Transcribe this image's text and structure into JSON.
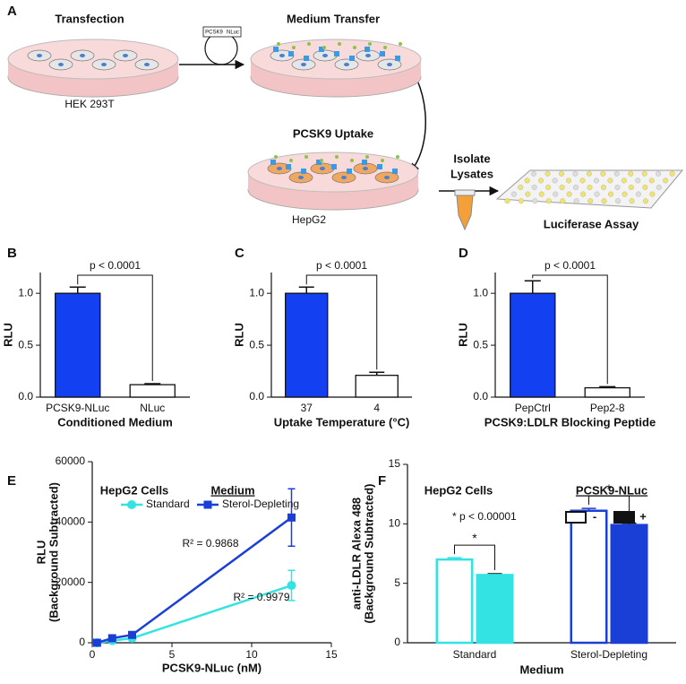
{
  "diagram": {
    "label": "A",
    "transfection": "Transfection",
    "cell_line_1": "HEK 293T",
    "plasmid": [
      "PCSK9",
      "NLuc"
    ],
    "medium_transfer": "Medium Transfer",
    "uptake": "PCSK9 Uptake",
    "cell_line_2": "HepG2",
    "isolate": [
      "Isolate",
      "Lysates"
    ],
    "assay": "Luciferase Assay"
  },
  "chart_data": [
    {
      "type": "bar",
      "panel": "B",
      "categories": [
        "PCSK9-NLuc",
        "NLuc"
      ],
      "values": [
        1.0,
        0.12
      ],
      "errors": [
        0.06,
        0.01
      ],
      "colors": [
        "#1340f0",
        "#ffffff"
      ],
      "ylabel": "RLU",
      "xlabel": "Conditioned Medium",
      "annotation": "p < 0.0001",
      "ylim": [
        0,
        1.2
      ],
      "yticks": [
        {
          "value": 0,
          "label": "0.0"
        },
        0.5,
        {
          "value": 1,
          "label": "1.0"
        }
      ]
    },
    {
      "type": "bar",
      "panel": "C",
      "categories": [
        "37",
        "4"
      ],
      "values": [
        1.0,
        0.21
      ],
      "errors": [
        0.06,
        0.03
      ],
      "colors": [
        "#1340f0",
        "#ffffff"
      ],
      "ylabel": "RLU",
      "xlabel": "Uptake Temperature (°C)",
      "annotation": "p < 0.0001",
      "ylim": [
        0,
        1.2
      ],
      "yticks": [
        {
          "value": 0,
          "label": "0.0"
        },
        0.5,
        {
          "value": 1,
          "label": "1.0"
        }
      ]
    },
    {
      "type": "bar",
      "panel": "D",
      "categories": [
        "PepCtrl",
        "Pep2-8"
      ],
      "values": [
        1.0,
        0.09
      ],
      "errors": [
        0.12,
        0.01
      ],
      "colors": [
        "#1340f0",
        "#ffffff"
      ],
      "ylabel": "RLU",
      "xlabel": "PCSK9:LDLR Blocking Peptide",
      "annotation": "p < 0.0001",
      "ylim": [
        0,
        1.2
      ],
      "yticks": [
        {
          "value": 0,
          "label": "0.0"
        },
        0.5,
        {
          "value": 1,
          "label": "1.0"
        }
      ]
    },
    {
      "type": "line",
      "panel": "E",
      "x": [
        0.3,
        1.25,
        2.5,
        12.5
      ],
      "series": [
        {
          "name": "Standard",
          "color": "#33e3e3",
          "marker": "circle",
          "values": [
            0,
            700,
            1500,
            19000
          ],
          "errors": [
            100,
            400,
            400,
            5000
          ]
        },
        {
          "name": "Sterol-Depleting",
          "color": "#1a3fd6",
          "marker": "square",
          "values": [
            0,
            1500,
            2600,
            41500
          ],
          "errors": [
            100,
            500,
            500,
            9500
          ]
        }
      ],
      "xlim": [
        0,
        15
      ],
      "xticks": [
        0,
        5,
        10,
        15
      ],
      "ylim": [
        0,
        60000
      ],
      "yticks": [
        0,
        20000,
        40000,
        60000
      ],
      "xlabel": "PCSK9-NLuc (nM)",
      "ylabel": [
        "RLU",
        "(Background Subtracted)"
      ],
      "annotation": "HepG2 Cells",
      "legend_title": "Medium",
      "r2_labels": [
        "R² = 0.9868",
        "R² = 0.9979"
      ]
    },
    {
      "type": "grouped_bar",
      "panel": "F",
      "categories": [
        "Standard",
        "Sterol-Depleting"
      ],
      "category_colors": [
        "#33e3e3",
        "#1a3fd6"
      ],
      "series": [
        {
          "name": "-",
          "fill": "open",
          "values": [
            7.0,
            11.1
          ],
          "errors": [
            0.15,
            0.2
          ]
        },
        {
          "name": "+",
          "fill": "solid",
          "values": [
            5.7,
            9.9
          ],
          "errors": [
            0.1,
            0.15
          ]
        }
      ],
      "ylim": [
        0,
        15
      ],
      "yticks": [
        0,
        5,
        10,
        15
      ],
      "ylabel": [
        "anti-LDLR Alexa 488",
        "(Background Subtracted)"
      ],
      "xlabel": "Medium",
      "annotations": [
        "HepG2 Cells",
        "* p < 0.00001"
      ],
      "legend_title": "PCSK9-NLuc",
      "significance": [
        "*",
        "*"
      ]
    }
  ]
}
